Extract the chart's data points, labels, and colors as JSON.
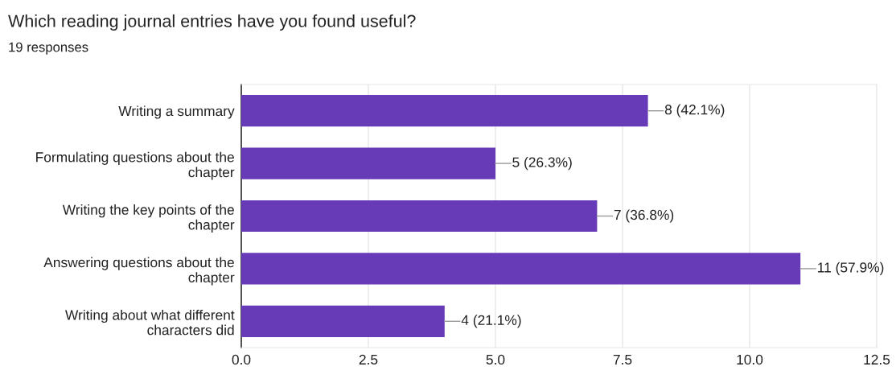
{
  "chart_data": {
    "type": "bar",
    "orientation": "horizontal",
    "title": "Which reading journal entries have you found useful?",
    "subtitle": "19 responses",
    "categories": [
      "Writing a summary",
      "Formulating questions about the\nchapter",
      "Writing the key points of the\nchapter",
      "Answering questions about the\nchapter",
      "Writing about what different\ncharacters did"
    ],
    "values": [
      8,
      5,
      7,
      11,
      4
    ],
    "value_labels": [
      "8 (42.1%)",
      "5 (26.3%)",
      "7 (36.8%)",
      "11 (57.9%)",
      "4 (21.1%)"
    ],
    "color": "#673ab7",
    "xlim": [
      0,
      12.5
    ],
    "xticks": [
      {
        "value": 0,
        "label": "0.0"
      },
      {
        "value": 2.5,
        "label": "2.5"
      },
      {
        "value": 5,
        "label": "5.0"
      },
      {
        "value": 7.5,
        "label": "7.5"
      },
      {
        "value": 10,
        "label": "10.0"
      },
      {
        "value": 12.5,
        "label": "12.5"
      }
    ],
    "grid": "x"
  }
}
